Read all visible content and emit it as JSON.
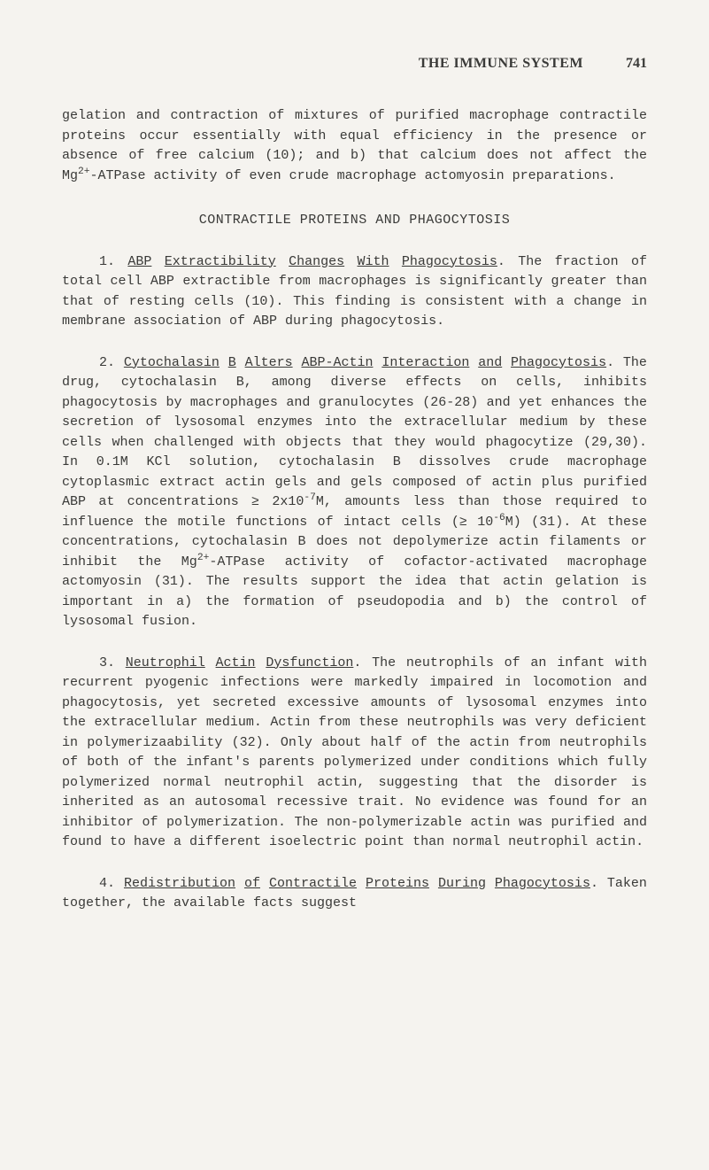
{
  "header": {
    "title": "THE IMMUNE SYSTEM",
    "page_number": "741"
  },
  "intro_paragraph": {
    "pre": "gelation and contraction of mixtures of purified macrophage contractile proteins occur essentially with equal efficiency in the presence or absence of free calcium (10); and b) that calcium does not affect the Mg",
    "sup": "2+",
    "post": "-ATPase activity of even crude macrophage actomyosin preparations."
  },
  "section_heading": "CONTRACTILE PROTEINS AND PHAGOCYTOSIS",
  "item1": {
    "num": "1.  ",
    "u1": "ABP",
    "sp1": " ",
    "u2": "Extractibility",
    "sp2": " ",
    "u3": "Changes",
    "sp3": " ",
    "u4": "With",
    "sp4": " ",
    "u5": "Phagocytosis",
    "tail": ".  The fraction of total cell ABP extractible from macrophages is significantly greater than that of resting cells (10).  This finding is consistent with a change in membrane association of ABP during phagocytosis."
  },
  "item2": {
    "num": "2.  ",
    "u1": "Cytochalasin",
    "sp1": " ",
    "u2": "B",
    "sp2": " ",
    "u3": "Alters",
    "sp3": " ",
    "u4": "ABP-Actin",
    "sp4": " ",
    "u5": "Interaction",
    "sp5": " ",
    "u6": "and",
    "sp6": " ",
    "u7": "Phagocytosis",
    "t1": ".  The drug, cytochalasin B, among diverse effects on cells, inhibits phagocytosis by macrophages and granulo­cytes (26-28) and yet enhances the secretion of lysosomal enzymes into the extracellular medium by these cells when challenged with objects that they would phagocytize (29,30). In 0.1M KCl solution, cytochalasin B dissolves crude macro­phage cytoplasmic extract actin gels and gels composed of actin plus purified ABP at concentrations ≥ 2x10",
    "sup1": "-7",
    "t2": "M, amounts less than those required to influence the motile functions of intact cells (≥ 10",
    "sup2": "-6",
    "t3": "M) (31).  At these concentrations, cytochalasin B does not depolymerize actin filaments or inhib­it the Mg",
    "sup3": "2+",
    "t4": "-ATPase activity of cofactor-activated macrophage actomyosin (31).  The results support the idea that actin gelation is important in a) the formation of pseudopodia and b) the control of lysosomal fusion."
  },
  "item3": {
    "num": "3.  ",
    "u1": "Neutrophil",
    "sp1": " ",
    "u2": "Actin",
    "sp2": " ",
    "u3": "Dysfunction",
    "tail": ".  The neutrophils of an infant with recurrent pyogenic infections were markedly im­paired in locomotion and phagocytosis, yet secreted excessive amounts of lysosomal enzymes into the extracellular medium. Actin from these neutrophils was very deficient in polymeriza­ability (32).  Only about half of the actin from neutrophils of both of the infant's parents polymerized under conditions which fully polymerized normal neutrophil actin, suggesting that the disorder is inherited as an autosomal recessive trait.  No evidence was found for an inhibitor of polymeriza­tion.  The non-polymerizable actin was purified and found to have a different isoelectric point than normal neutrophil actin."
  },
  "item4": {
    "num": "4.  ",
    "u1": "Redistribution",
    "sp1": " ",
    "u2": "of",
    "sp2": " ",
    "u3": "Contractile",
    "sp3": " ",
    "u4": "Proteins",
    "sp4": " ",
    "u5": "During",
    "sp5": " ",
    "u6": "Phagocytosis",
    "tail": ".  Taken together, the available facts suggest"
  }
}
